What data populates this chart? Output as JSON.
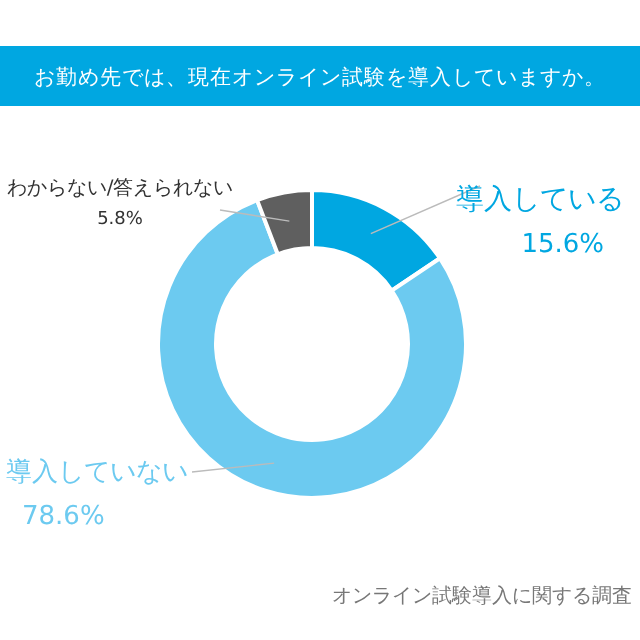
{
  "chart_data": {
    "type": "donut",
    "title": "お勤め先では、現在オンライン試験を導入していますか。",
    "categories": [
      "導入している",
      "導入していない",
      "わからない/答えられない"
    ],
    "values": [
      15.6,
      78.6,
      5.8
    ],
    "value_labels": [
      "15.6%",
      "78.6%",
      "5.8%"
    ],
    "colors": [
      "#00a7e1",
      "#6ccaf0",
      "#5f5f5f"
    ],
    "annotations": [
      "オンライン試験導入に関する調査"
    ]
  }
}
